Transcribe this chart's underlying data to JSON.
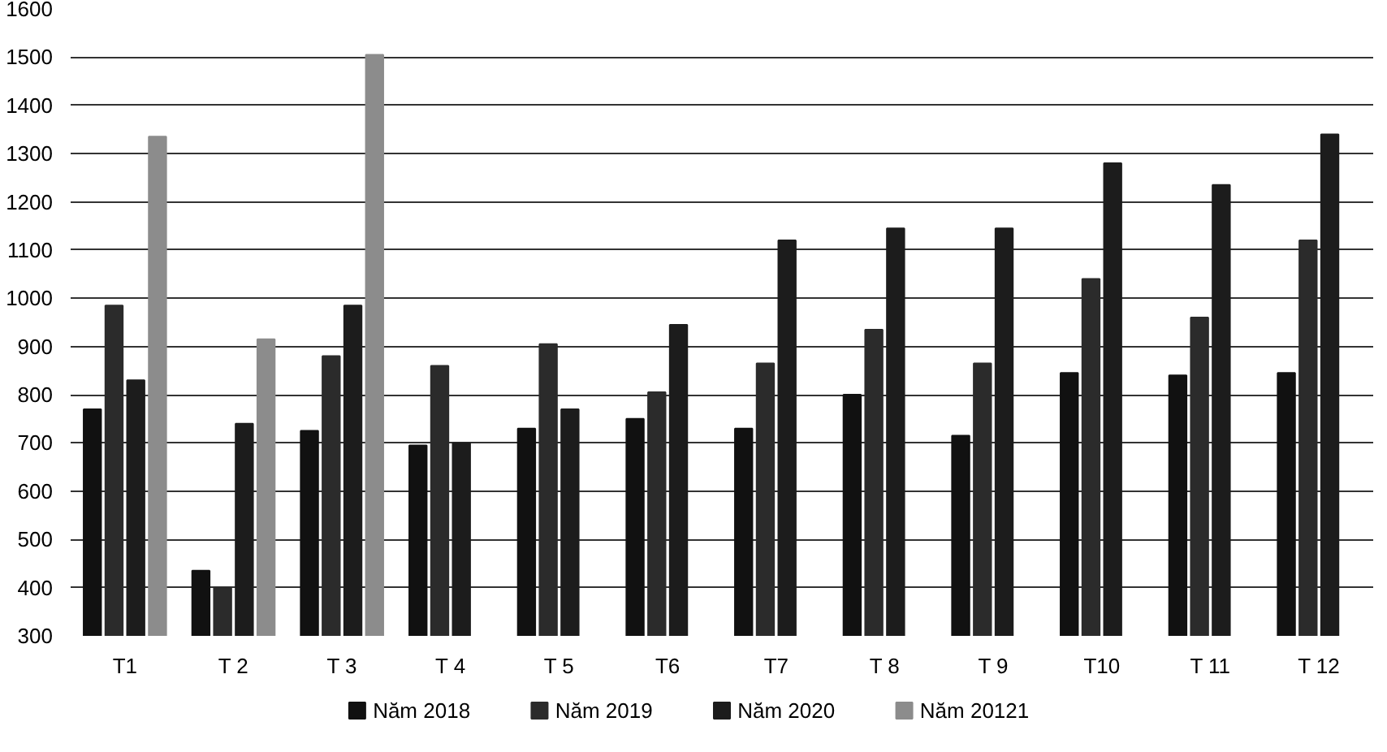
{
  "chart_data": {
    "type": "bar",
    "categories": [
      "T1",
      "T 2",
      "T 3",
      "T 4",
      "T 5",
      "T6",
      "T7",
      "T 8",
      "T 9",
      "T10",
      "T 11",
      "T 12"
    ],
    "series": [
      {
        "name": "Năm 2018",
        "color": "#111111",
        "values": [
          770,
          435,
          725,
          695,
          730,
          750,
          730,
          800,
          715,
          845,
          840,
          845
        ]
      },
      {
        "name": "Năm 2019",
        "color": "#2b2b2b",
        "values": [
          985,
          400,
          880,
          860,
          905,
          805,
          865,
          935,
          865,
          1040,
          960,
          1120
        ]
      },
      {
        "name": "Năm 2020",
        "color": "#1c1c1c",
        "values": [
          830,
          740,
          985,
          700,
          770,
          945,
          1120,
          1145,
          1145,
          1280,
          1235,
          1340
        ]
      },
      {
        "name": "Năm 20121",
        "color": "#8c8c8c",
        "values": [
          1335,
          915,
          1505,
          null,
          null,
          null,
          null,
          null,
          null,
          null,
          null,
          null
        ]
      }
    ],
    "ylim": [
      300,
      1600
    ],
    "yticks": [
      300,
      400,
      500,
      600,
      700,
      800,
      900,
      1000,
      1100,
      1200,
      1300,
      1400,
      1500,
      1600
    ],
    "grid": "y",
    "legend": "bottom"
  }
}
